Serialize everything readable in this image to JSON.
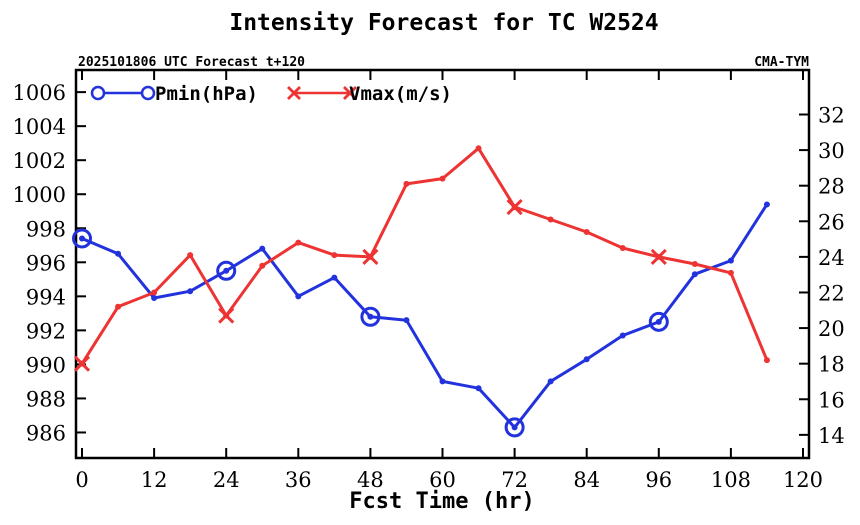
{
  "chart_data": {
    "type": "line",
    "title": "Intensity Forecast for TC W2524",
    "subtitle_left": "2025101806 UTC Forecast t+120",
    "subtitle_right": "CMA-TYM",
    "xlabel": "Fcst Time (hr)",
    "xlim": [
      -1,
      121
    ],
    "xticks": [
      0,
      12,
      24,
      36,
      48,
      60,
      72,
      84,
      96,
      108,
      120
    ],
    "left_axis": {
      "ylim": [
        984.5,
        1007.3
      ],
      "ticks": [
        986,
        988,
        990,
        992,
        994,
        996,
        998,
        1000,
        1002,
        1004,
        1006
      ]
    },
    "right_axis": {
      "ylim": [
        12.7,
        34.5
      ],
      "ticks": [
        14,
        16,
        18,
        20,
        22,
        24,
        26,
        28,
        30,
        32
      ]
    },
    "series": [
      {
        "name": "Pmin(hPa)",
        "axis": "left",
        "color": "#2233dd",
        "marker": "circle",
        "x": [
          0,
          6,
          12,
          18,
          24,
          30,
          36,
          42,
          48,
          54,
          60,
          66,
          72,
          78,
          84,
          90,
          96,
          102,
          108,
          114
        ],
        "values": [
          997.4,
          996.5,
          993.9,
          994.3,
          995.5,
          996.8,
          994.0,
          995.1,
          992.8,
          992.6,
          989.0,
          988.6,
          986.3,
          989.0,
          990.3,
          991.7,
          992.5,
          995.3,
          996.1,
          999.4
        ],
        "markers_at": [
          0,
          24,
          48,
          72,
          96
        ]
      },
      {
        "name": "Vmax(m/s)",
        "axis": "right",
        "color": "#ee3333",
        "marker": "x",
        "x": [
          0,
          6,
          12,
          18,
          24,
          30,
          36,
          42,
          48,
          54,
          60,
          66,
          72,
          78,
          84,
          90,
          96,
          102,
          108,
          114
        ],
        "values": [
          18.0,
          21.2,
          22.0,
          24.1,
          20.7,
          23.5,
          24.8,
          24.1,
          24.0,
          28.1,
          28.4,
          30.1,
          26.8,
          26.1,
          25.4,
          24.5,
          24.0,
          23.6,
          23.1,
          18.2
        ],
        "markers_at": [
          0,
          24,
          48,
          72,
          96
        ]
      }
    ]
  }
}
